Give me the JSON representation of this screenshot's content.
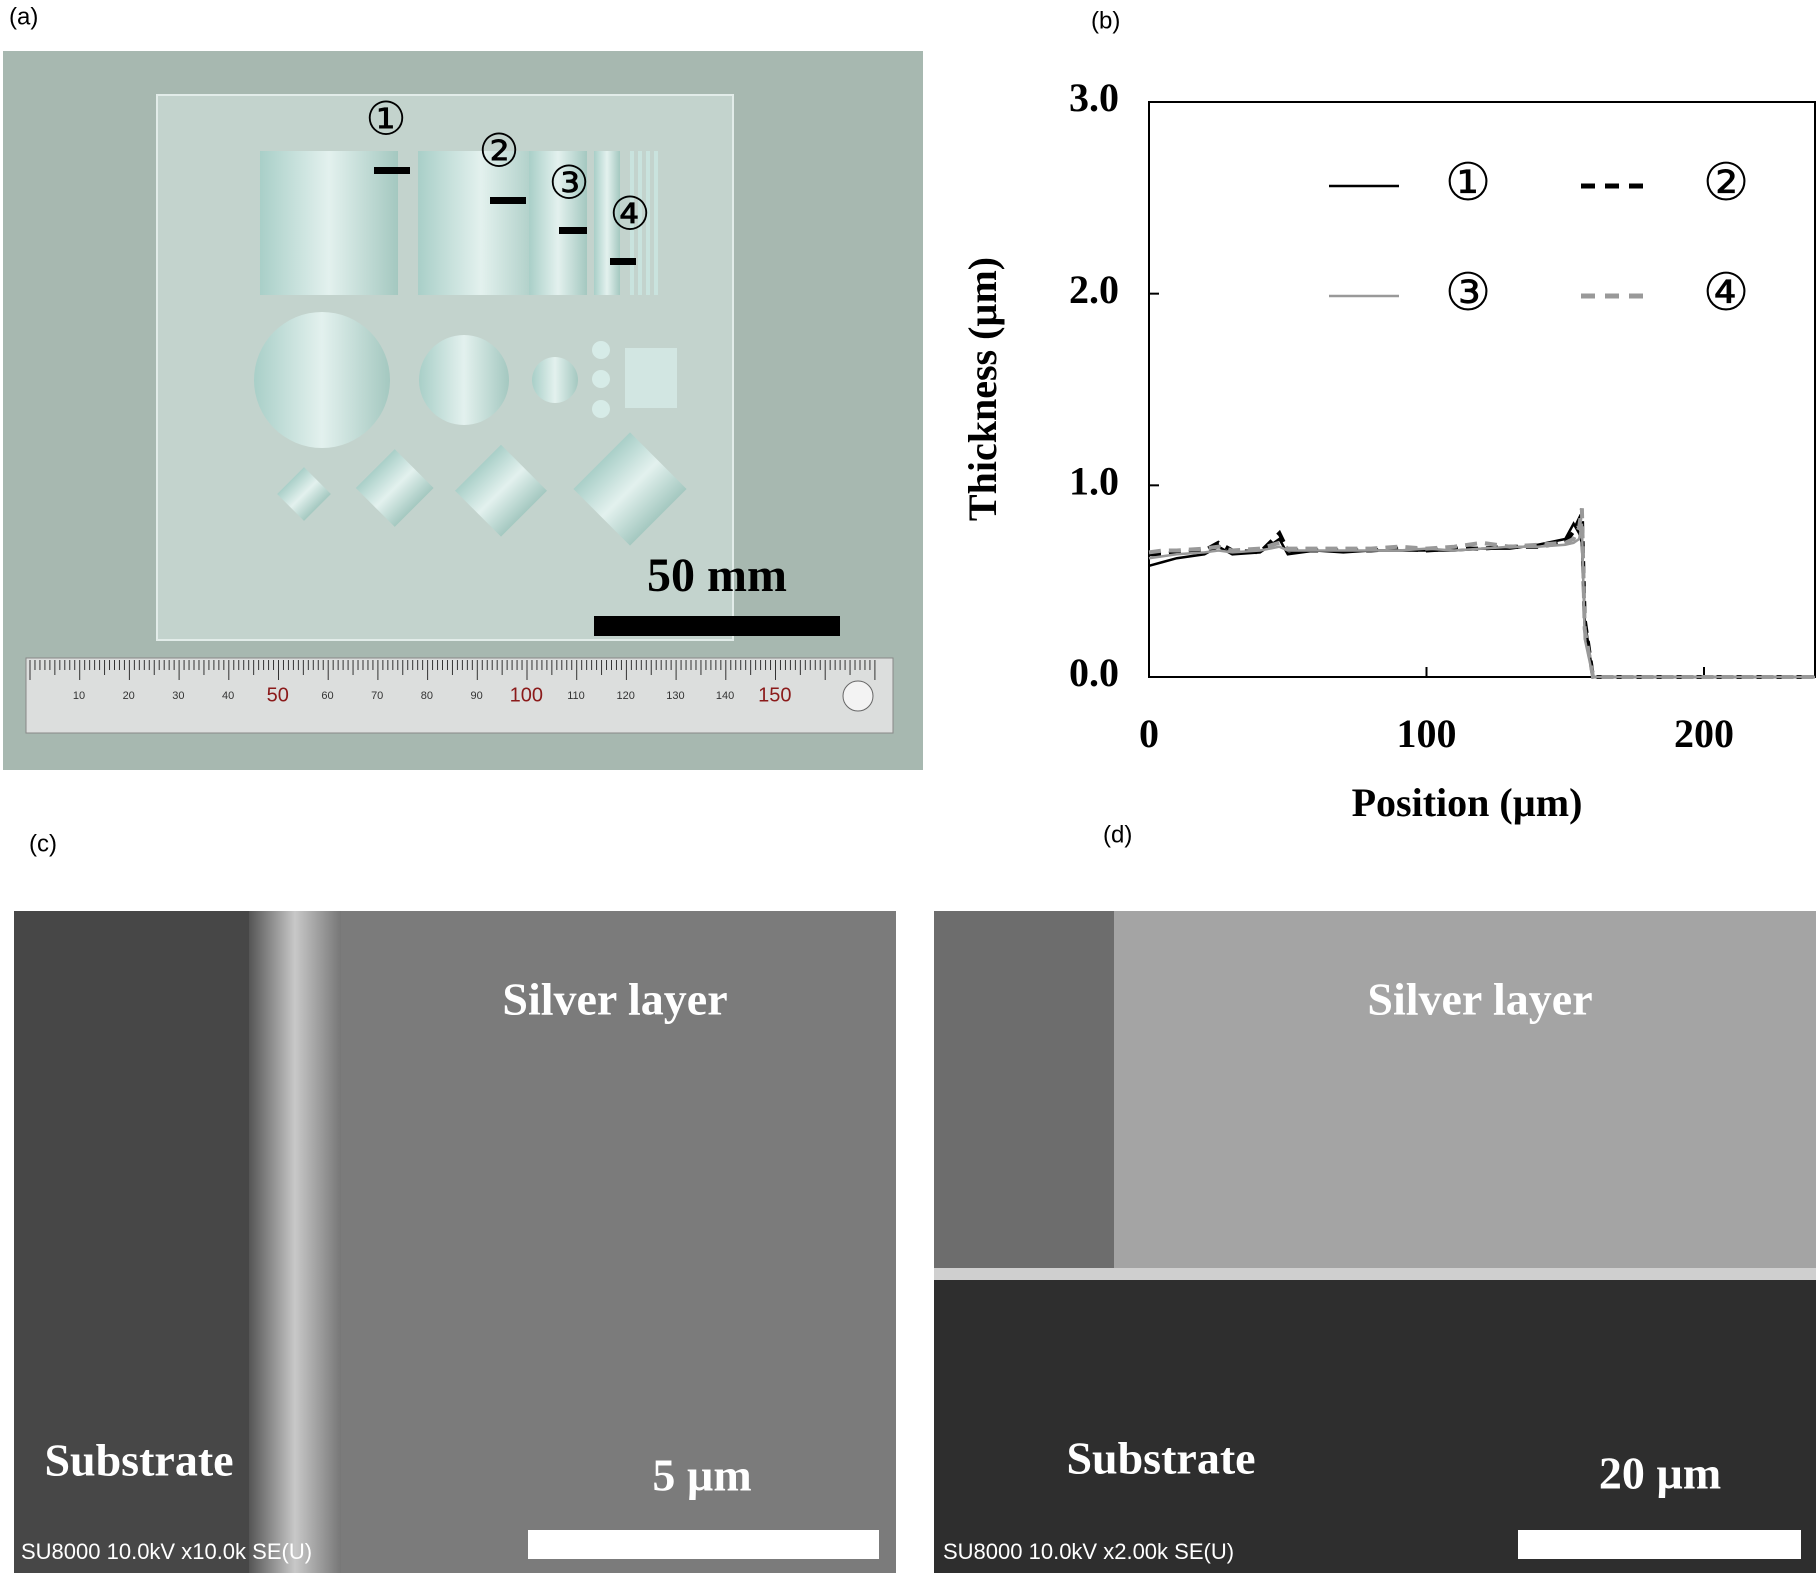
{
  "panels": {
    "a": {
      "label": "(a)",
      "markers": [
        "①",
        "②",
        "③",
        "④"
      ],
      "scale_bar": "50 mm",
      "ruler": [
        "10",
        "20",
        "30",
        "40",
        "50",
        "60",
        "70",
        "80",
        "90",
        "100",
        "110",
        "120",
        "130",
        "140",
        "150"
      ]
    },
    "b": {
      "label": "(b)"
    },
    "c": {
      "label": "(c)",
      "top_text": "Silver layer",
      "bottom_text": "Substrate",
      "scale_bar": "5 µm",
      "info": "SU8000 10.0kV x10.0k SE(U)"
    },
    "d": {
      "label": "(d)",
      "top_text": "Silver layer",
      "bottom_text": "Substrate",
      "scale_bar": "20 µm",
      "info": "SU8000 10.0kV x2.00k SE(U)"
    }
  },
  "chart_data": {
    "type": "line",
    "x_label": "Position (µm)",
    "y_label": "Thickness (µm)",
    "x": [
      0,
      5,
      10,
      20,
      25,
      30,
      40,
      47,
      50,
      60,
      70,
      80,
      90,
      100,
      110,
      120,
      130,
      140,
      150,
      153,
      155,
      156,
      157,
      160,
      180,
      200,
      240
    ],
    "series": [
      {
        "name": "①",
        "color": "#000000",
        "dashed": false,
        "values": [
          0.58,
          0.6,
          0.62,
          0.64,
          0.68,
          0.64,
          0.65,
          0.72,
          0.64,
          0.66,
          0.65,
          0.66,
          0.66,
          0.66,
          0.66,
          0.67,
          0.67,
          0.69,
          0.72,
          0.8,
          0.75,
          0.7,
          0.3,
          0,
          0,
          0,
          0
        ]
      },
      {
        "name": "②",
        "color": "#000000",
        "dashed": true,
        "values": [
          0.64,
          0.64,
          0.65,
          0.66,
          0.7,
          0.66,
          0.65,
          0.75,
          0.66,
          0.66,
          0.66,
          0.66,
          0.67,
          0.66,
          0.67,
          0.67,
          0.68,
          0.68,
          0.7,
          0.76,
          0.82,
          0.85,
          0.3,
          0,
          0,
          0,
          0
        ]
      },
      {
        "name": "③",
        "color": "#999999",
        "dashed": false,
        "values": [
          0.62,
          0.63,
          0.64,
          0.65,
          0.66,
          0.65,
          0.66,
          0.68,
          0.66,
          0.66,
          0.66,
          0.66,
          0.66,
          0.67,
          0.66,
          0.67,
          0.68,
          0.68,
          0.69,
          0.7,
          0.72,
          0.8,
          0.2,
          0,
          0,
          0,
          0
        ]
      },
      {
        "name": "④",
        "color": "#999999",
        "dashed": true,
        "values": [
          0.65,
          0.66,
          0.66,
          0.67,
          0.68,
          0.66,
          0.67,
          0.7,
          0.67,
          0.67,
          0.67,
          0.67,
          0.68,
          0.67,
          0.68,
          0.7,
          0.68,
          0.69,
          0.7,
          0.72,
          0.78,
          0.88,
          0.25,
          0,
          0,
          0,
          0
        ]
      }
    ],
    "xlim": [
      0,
      240
    ],
    "xticks": [
      0,
      100,
      200
    ],
    "ylim": [
      0,
      3
    ],
    "yticks": [
      {
        "value": 0,
        "label": "0.0"
      },
      {
        "value": 1,
        "label": "1.0"
      },
      {
        "value": 2,
        "label": "2.0"
      },
      {
        "value": 3,
        "label": "3.0"
      }
    ]
  }
}
